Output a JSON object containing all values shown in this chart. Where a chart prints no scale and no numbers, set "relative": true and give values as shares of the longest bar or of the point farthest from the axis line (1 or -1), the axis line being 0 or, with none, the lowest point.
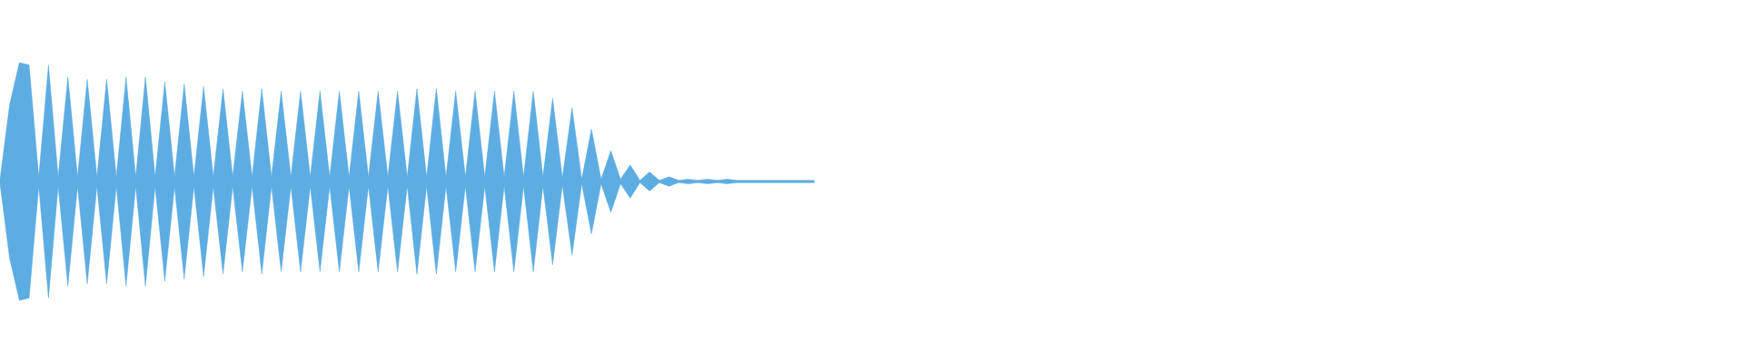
{
  "chart_data": {
    "type": "area",
    "relative": true,
    "categories": [
      null,
      null,
      null,
      null,
      null,
      null,
      null,
      null,
      null,
      null,
      null,
      null,
      null,
      null,
      null,
      null,
      null,
      null,
      null,
      null,
      null,
      null,
      null,
      null,
      null,
      null,
      null,
      null,
      null,
      null,
      null,
      null,
      null,
      null,
      null,
      null,
      null,
      null,
      null,
      null,
      null,
      null,
      null,
      null,
      null,
      null,
      null,
      null,
      null,
      null,
      null,
      null,
      null,
      null,
      null,
      null,
      null,
      null,
      null,
      null,
      null,
      null,
      null,
      null,
      null,
      null,
      null,
      null,
      null,
      null,
      null,
      null,
      null,
      null,
      null,
      null,
      null,
      null,
      null,
      null,
      null,
      null,
      null,
      null,
      null
    ],
    "series": [
      {
        "color": "#5dade2",
        "values": [
          0.02,
          0.65,
          1,
          0.98,
          0.04,
          0.98,
          0.04,
          0.88,
          0.04,
          0.86,
          0.04,
          0.86,
          0.04,
          0.88,
          0.04,
          0.88,
          0.04,
          0.84,
          0.04,
          0.82,
          0.04,
          0.8,
          0.04,
          0.78,
          0.04,
          0.76,
          0.04,
          0.78,
          0.04,
          0.76,
          0.04,
          0.76,
          0.04,
          0.76,
          0.04,
          0.76,
          0.04,
          0.76,
          0.04,
          0.76,
          0.04,
          0.76,
          0.04,
          0.78,
          0.04,
          0.78,
          0.04,
          0.76,
          0.04,
          0.76,
          0.04,
          0.76,
          0.04,
          0.76,
          0.04,
          0.76,
          0.04,
          0.7,
          0.03,
          0.62,
          0.02,
          0.44,
          0.02,
          0.26,
          0.02,
          0.14,
          0.01,
          0.08,
          0.01,
          0.04,
          0.01,
          0.02,
          0.01,
          0.02,
          0.01,
          0.02,
          0.01,
          0.01,
          0.01,
          0.01,
          0.01,
          0.01,
          0.01,
          0.01,
          0.01
        ]
      },
      {
        "color": "#5dade2",
        "values": [
          -0.02,
          -0.65,
          -1,
          -0.98,
          -0.04,
          -0.98,
          -0.04,
          -0.88,
          -0.04,
          -0.86,
          -0.04,
          -0.86,
          -0.04,
          -0.88,
          -0.04,
          -0.88,
          -0.04,
          -0.84,
          -0.04,
          -0.82,
          -0.04,
          -0.8,
          -0.04,
          -0.78,
          -0.04,
          -0.76,
          -0.04,
          -0.78,
          -0.04,
          -0.76,
          -0.04,
          -0.76,
          -0.04,
          -0.76,
          -0.04,
          -0.76,
          -0.04,
          -0.76,
          -0.04,
          -0.76,
          -0.04,
          -0.76,
          -0.04,
          -0.78,
          -0.04,
          -0.78,
          -0.04,
          -0.76,
          -0.04,
          -0.76,
          -0.04,
          -0.76,
          -0.04,
          -0.76,
          -0.04,
          -0.76,
          -0.04,
          -0.7,
          -0.03,
          -0.62,
          -0.02,
          -0.44,
          -0.02,
          -0.26,
          -0.02,
          -0.14,
          -0.01,
          -0.08,
          -0.01,
          -0.04,
          -0.01,
          -0.02,
          -0.01,
          -0.02,
          -0.01,
          -0.02,
          -0.01,
          -0.01,
          -0.01,
          -0.01,
          -0.01,
          -0.01,
          -0.01,
          -0.01,
          -0.01
        ]
      }
    ]
  }
}
